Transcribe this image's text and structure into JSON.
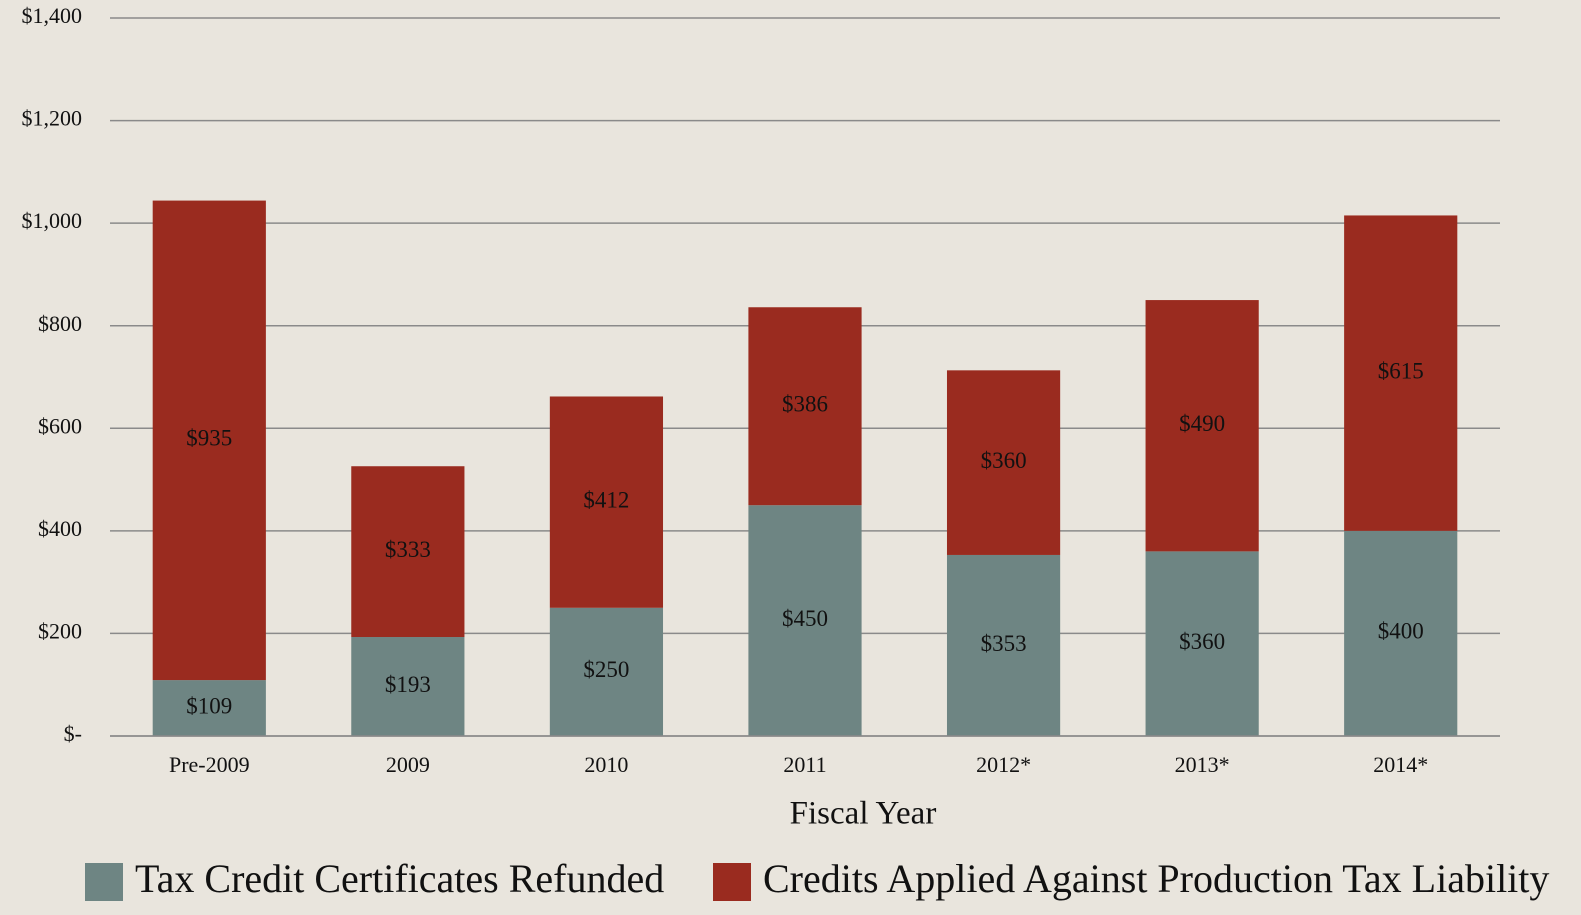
{
  "chart_data": {
    "type": "stacked_bar",
    "x_label": "Fiscal Year",
    "categories": [
      "Pre-2009",
      "2009",
      "2010",
      "2011",
      "2012*",
      "2013*",
      "2014*"
    ],
    "series": [
      {
        "name": "Tax Credit Certificates Refunded",
        "color": "#6e8583",
        "values": [
          109,
          193,
          250,
          450,
          353,
          360,
          400
        ],
        "value_labels": [
          "$109",
          "$193",
          "$250",
          "$450",
          "$353",
          "$360",
          "$400"
        ]
      },
      {
        "name": "Credits Applied Against Production Tax Liability",
        "color": "#9a2b1f",
        "values": [
          935,
          333,
          412,
          386,
          360,
          490,
          615
        ],
        "value_labels": [
          "$935",
          "$333",
          "$412",
          "$386",
          "$360",
          "$490",
          "$615"
        ]
      }
    ],
    "ylim": [
      0,
      1400
    ],
    "yticks": [
      {
        "value": 0,
        "label": "$-"
      },
      {
        "value": 200,
        "label": "$200"
      },
      {
        "value": 400,
        "label": "$400"
      },
      {
        "value": 600,
        "label": "$600"
      },
      {
        "value": 800,
        "label": "$800"
      },
      {
        "value": 1000,
        "label": "$1,000"
      },
      {
        "value": 1200,
        "label": "$1,200"
      },
      {
        "value": 1400,
        "label": "$1,400"
      }
    ],
    "grid": true
  }
}
